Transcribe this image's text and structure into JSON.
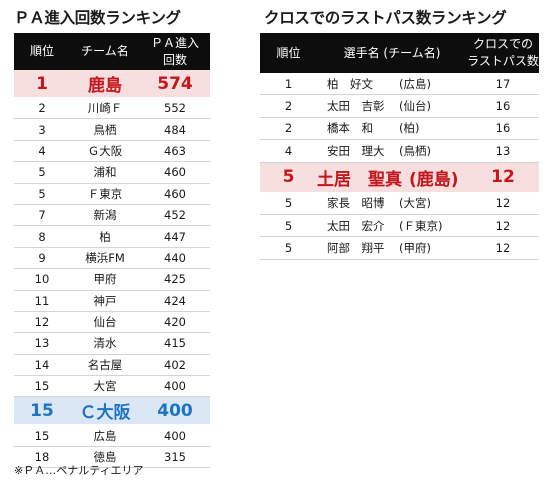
{
  "pa_table": {
    "title": "ＰＡ進入回数ランキング",
    "headers": [
      "順位",
      "チーム名",
      "ＰＡ進入回数"
    ],
    "rows": [
      {
        "rank": "1",
        "team": "鹿島",
        "count": "574"
      },
      {
        "rank": "2",
        "team": "川崎Ｆ",
        "count": "552"
      },
      {
        "rank": "3",
        "team": "鳥栖",
        "count": "484"
      },
      {
        "rank": "4",
        "team": "Ｇ大阪",
        "count": "463"
      },
      {
        "rank": "5",
        "team": "浦和",
        "count": "460"
      },
      {
        "rank": "5",
        "team": "Ｆ東京",
        "count": "460"
      },
      {
        "rank": "7",
        "team": "新潟",
        "count": "452"
      },
      {
        "rank": "8",
        "team": "柏",
        "count": "447"
      },
      {
        "rank": "9",
        "team": "横浜FM",
        "count": "440"
      },
      {
        "rank": "10",
        "team": "甲府",
        "count": "425"
      },
      {
        "rank": "11",
        "team": "神戸",
        "count": "424"
      },
      {
        "rank": "12",
        "team": "仙台",
        "count": "420"
      },
      {
        "rank": "13",
        "team": "清水",
        "count": "415"
      },
      {
        "rank": "14",
        "team": "名古屋",
        "count": "402"
      },
      {
        "rank": "15",
        "team": "大宮",
        "count": "400"
      },
      {
        "rank": "15",
        "team": "Ｃ大阪",
        "count": "400"
      },
      {
        "rank": "15",
        "team": "広島",
        "count": "400"
      },
      {
        "rank": "18",
        "team": "徳島",
        "count": "315"
      }
    ],
    "footnote": "※ＰＡ…ペナルティエリア"
  },
  "cross_table": {
    "title": "クロスでのラストパス数ランキング",
    "headers": [
      "順位",
      "選手名 (チーム名)",
      "クロスでのラストパス数"
    ],
    "rows": [
      {
        "rank": "1",
        "player": "柏　好文",
        "club": "(広島)",
        "count": "17"
      },
      {
        "rank": "2",
        "player": "太田　吉彰",
        "club": "(仙台)",
        "count": "16"
      },
      {
        "rank": "2",
        "player": "橋本　和",
        "club": "(柏)",
        "count": "16"
      },
      {
        "rank": "4",
        "player": "安田　理大",
        "club": "(鳥栖)",
        "count": "13"
      },
      {
        "rank": "5",
        "player": "土居　聖真",
        "club": "(鹿島)",
        "count": "12"
      },
      {
        "rank": "5",
        "player": "家長　昭博",
        "club": "(大宮)",
        "count": "12"
      },
      {
        "rank": "5",
        "player": "太田　宏介",
        "club": "(Ｆ東京)",
        "count": "12"
      },
      {
        "rank": "5",
        "player": "阿部　翔平",
        "club": "(甲府)",
        "count": "12"
      }
    ]
  },
  "colors": {
    "highlight_red": "#c4161c",
    "highlight_red_bg": "#f7dfe0",
    "highlight_blue": "#1f73c4",
    "highlight_blue_bg": "#dbe7f4",
    "header_bg": "#0d0d0d"
  }
}
